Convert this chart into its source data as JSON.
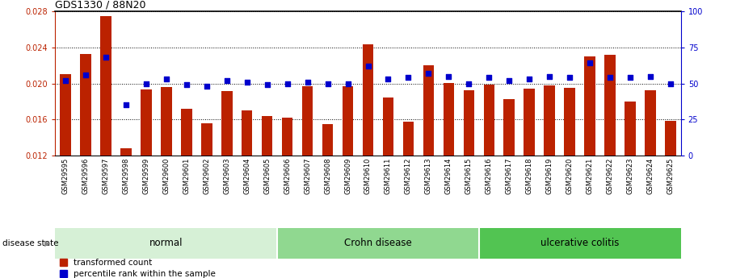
{
  "title": "GDS1330 / 88N20",
  "samples": [
    "GSM29595",
    "GSM29596",
    "GSM29597",
    "GSM29598",
    "GSM29599",
    "GSM29600",
    "GSM29601",
    "GSM29602",
    "GSM29603",
    "GSM29604",
    "GSM29605",
    "GSM29606",
    "GSM29607",
    "GSM29608",
    "GSM29609",
    "GSM29610",
    "GSM29611",
    "GSM29612",
    "GSM29613",
    "GSM29614",
    "GSM29615",
    "GSM29616",
    "GSM29617",
    "GSM29618",
    "GSM29619",
    "GSM29620",
    "GSM29621",
    "GSM29622",
    "GSM29623",
    "GSM29624",
    "GSM29625"
  ],
  "transformed_count": [
    0.02103,
    0.02328,
    0.02748,
    0.01283,
    0.01935,
    0.01963,
    0.01718,
    0.01558,
    0.01912,
    0.017,
    0.01643,
    0.01618,
    0.01972,
    0.01548,
    0.01965,
    0.0243,
    0.01848,
    0.01572,
    0.02198,
    0.02003,
    0.01925,
    0.01983,
    0.0183,
    0.0194,
    0.0198,
    0.0195,
    0.02298,
    0.0232,
    0.01798,
    0.0192,
    0.01583
  ],
  "percentile_rank": [
    52,
    56,
    68,
    35,
    50,
    53,
    49,
    48,
    52,
    51,
    49,
    50,
    51,
    50,
    50,
    62,
    53,
    54,
    57,
    55,
    50,
    54,
    52,
    53,
    55,
    54,
    64,
    54,
    54,
    55,
    50
  ],
  "groups": [
    {
      "label": "normal",
      "start": 0,
      "end": 11,
      "color": "#d6f0d6"
    },
    {
      "label": "Crohn disease",
      "start": 11,
      "end": 21,
      "color": "#90d890"
    },
    {
      "label": "ulcerative colitis",
      "start": 21,
      "end": 31,
      "color": "#52c452"
    }
  ],
  "bar_color": "#bb2200",
  "dot_color": "#0000cc",
  "ylim_left": [
    0.012,
    0.028
  ],
  "ylim_right": [
    0,
    100
  ],
  "yticks_left": [
    0.012,
    0.016,
    0.02,
    0.024,
    0.028
  ],
  "yticks_right": [
    0,
    25,
    50,
    75,
    100
  ],
  "legend_items": [
    "transformed count",
    "percentile rank within the sample"
  ],
  "disease_state_label": "disease state"
}
